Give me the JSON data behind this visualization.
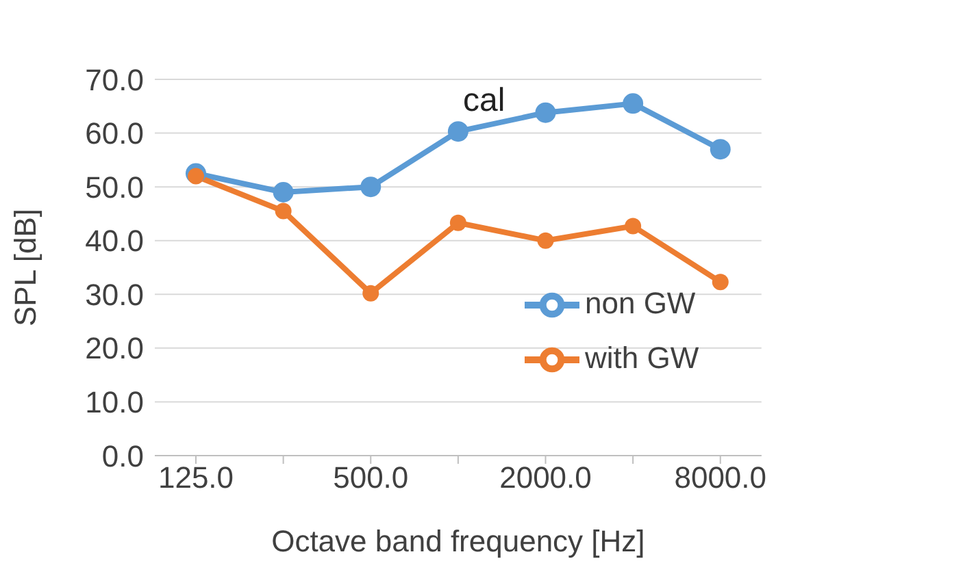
{
  "chart_data": {
    "type": "line",
    "xlabel": "Octave band frequency [Hz]",
    "ylabel": "SPL [dB]",
    "annotations": [
      "cal"
    ],
    "categories": [
      "125.0",
      null,
      "500.0",
      null,
      "2000.0",
      null,
      "8000.0"
    ],
    "series": [
      {
        "name": "non GW",
        "color": "#5b9bd5",
        "values": [
          52.5,
          49,
          50,
          60.3,
          63.8,
          65.5,
          57
        ]
      },
      {
        "name": "with GW",
        "color": "#ed7d31",
        "values": [
          52,
          45.5,
          30.2,
          43.3,
          40,
          42.7,
          32.3
        ]
      }
    ],
    "ylim": [
      0,
      70
    ],
    "yticks": [
      {
        "value": 0,
        "label": "0.0"
      },
      {
        "value": 10,
        "label": "10.0"
      },
      {
        "value": 20,
        "label": "20.0"
      },
      {
        "value": 30,
        "label": "30.0"
      },
      {
        "value": 40,
        "label": "40.0"
      },
      {
        "value": 50,
        "label": "50.0"
      },
      {
        "value": 60,
        "label": "60.0"
      },
      {
        "value": 70,
        "label": "70.0"
      }
    ],
    "grid": "y",
    "legend": "right",
    "marker": "circle",
    "line_style": "solid"
  }
}
